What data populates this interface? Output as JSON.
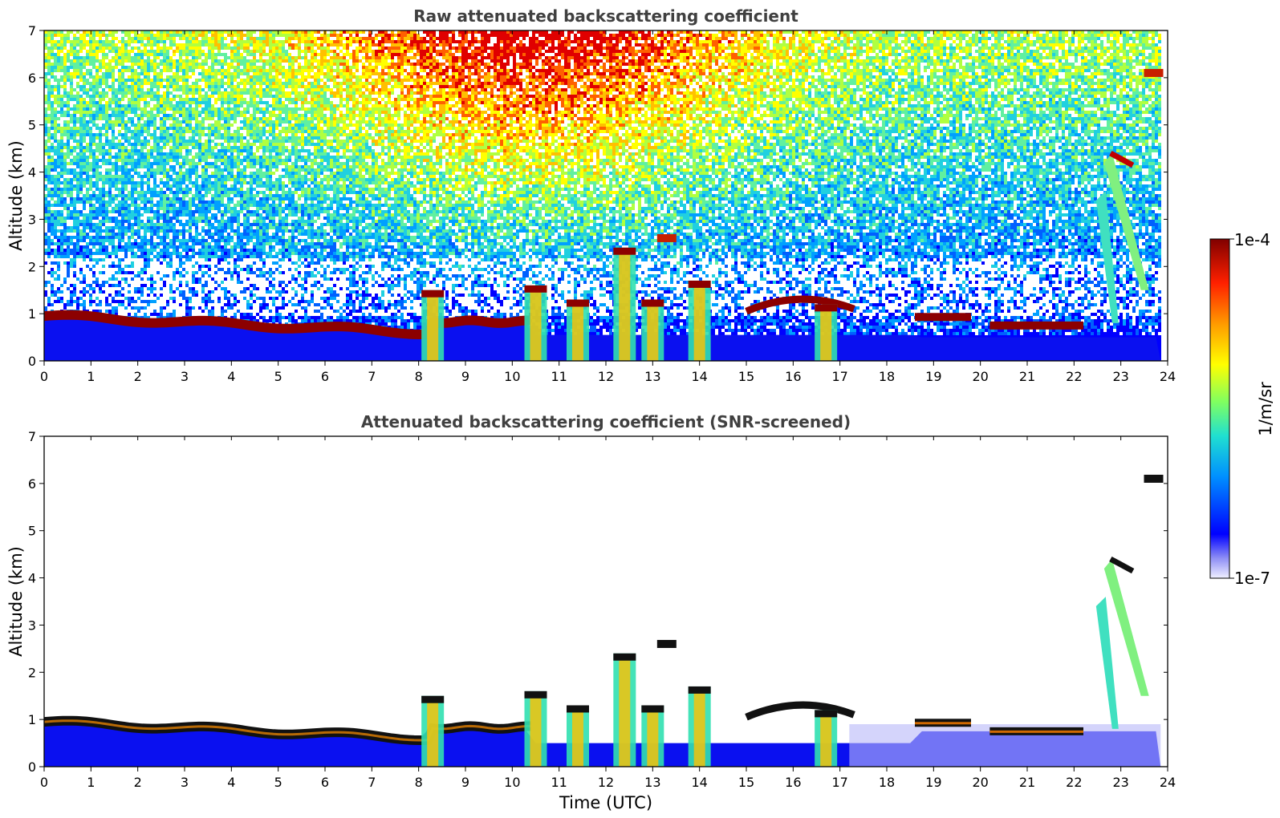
{
  "chart_data": [
    {
      "type": "heatmap",
      "title": "Raw attenuated backscattering coefficient",
      "xlabel": "",
      "ylabel": "Altitude (km)",
      "xlim": [
        0,
        24
      ],
      "ylim": [
        0,
        7
      ],
      "x_ticks": [
        "0",
        "1",
        "2",
        "3",
        "4",
        "5",
        "6",
        "7",
        "8",
        "9",
        "10",
        "11",
        "12",
        "13",
        "14",
        "15",
        "16",
        "17",
        "18",
        "19",
        "20",
        "21",
        "22",
        "23",
        "24"
      ],
      "y_ticks": [
        "0",
        "1",
        "2",
        "3",
        "4",
        "5",
        "6",
        "7"
      ],
      "grid": false,
      "features": [
        {
          "kind": "cloud-base",
          "t_start": 0,
          "t_end": 8.2,
          "alt": [
            0.95,
            0.6
          ]
        },
        {
          "kind": "cloud-base",
          "t_start": 7.6,
          "t_end": 10.4,
          "alt": [
            0.85,
            0.8
          ]
        },
        {
          "kind": "cloud-column",
          "t": 8.3,
          "alt_top": 1.5
        },
        {
          "kind": "cloud-column",
          "t": 10.5,
          "alt_top": 1.6
        },
        {
          "kind": "cloud-column",
          "t": 11.4,
          "alt_top": 1.3
        },
        {
          "kind": "cloud-column",
          "t": 12.4,
          "alt_top": 2.4
        },
        {
          "kind": "cloud-column",
          "t": 13.0,
          "alt_top": 1.3
        },
        {
          "kind": "cloud-column",
          "t": 14.0,
          "alt_top": 1.7
        },
        {
          "kind": "cloud-arc",
          "t_start": 15.0,
          "t_end": 17.3,
          "alt": 1.3
        },
        {
          "kind": "cloud-column",
          "t": 16.7,
          "alt_top": 1.2
        },
        {
          "kind": "cloud-layer",
          "t_start": 18.6,
          "t_end": 19.8,
          "alt": 0.93
        },
        {
          "kind": "cloud-layer",
          "t_start": 20.2,
          "t_end": 22.2,
          "alt": 0.75
        },
        {
          "kind": "virga",
          "t_start": 22.3,
          "t_end": 23.6,
          "alt_top": 4.4
        },
        {
          "kind": "cloud-patch",
          "t": 23.7,
          "alt": 6.1
        },
        {
          "kind": "cloud-patch",
          "t": 13.3,
          "alt": 2.6
        }
      ]
    },
    {
      "type": "heatmap",
      "title": "Attenuated backscattering coefficient (SNR-screened)",
      "xlabel": "Time (UTC)",
      "ylabel": "Altitude (km)",
      "xlim": [
        0,
        24
      ],
      "ylim": [
        0,
        7
      ],
      "x_ticks": [
        "0",
        "1",
        "2",
        "3",
        "4",
        "5",
        "6",
        "7",
        "8",
        "9",
        "10",
        "11",
        "12",
        "13",
        "14",
        "15",
        "16",
        "17",
        "18",
        "19",
        "20",
        "21",
        "22",
        "23",
        "24"
      ],
      "y_ticks": [
        "0",
        "1",
        "2",
        "3",
        "4",
        "5",
        "6",
        "7"
      ],
      "grid": false
    }
  ],
  "colorbar": {
    "label": "1/m/sr",
    "max_label": "1e-4",
    "min_label": "1e-7",
    "scale": "log",
    "range": [
      1e-07,
      0.0001
    ],
    "colors": [
      "#ffffff",
      "#0000ff",
      "#00a0ff",
      "#33e6cc",
      "#80ff66",
      "#ffff00",
      "#ffa000",
      "#ff2000",
      "#800000"
    ]
  }
}
